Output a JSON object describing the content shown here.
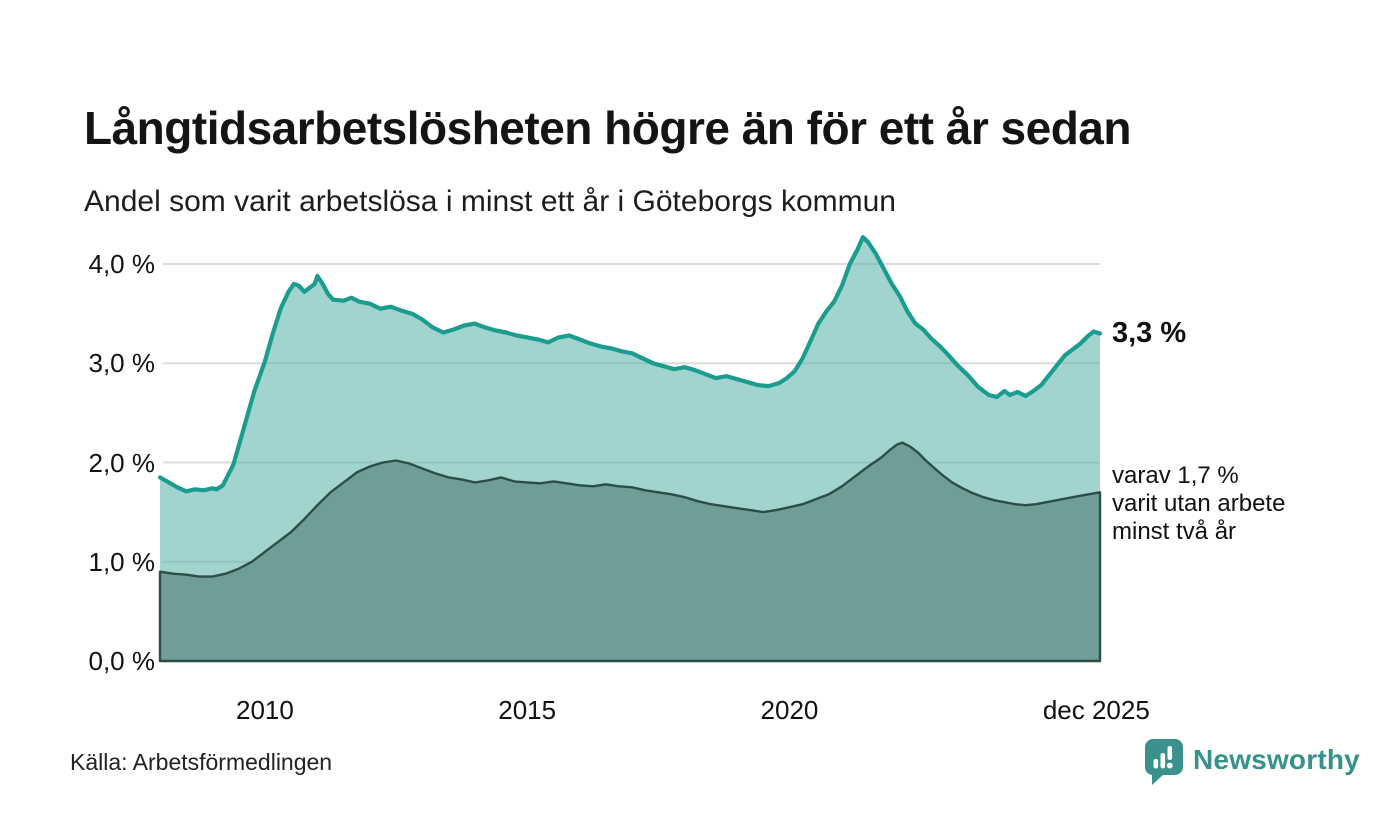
{
  "header": {
    "title": "Långtidsarbetslösheten högre än för ett år sedan",
    "subtitle": "Andel som varit arbetslösa i minst ett år i Göteborgs kommun"
  },
  "chart_data": {
    "type": "area",
    "title": "Långtidsarbetslösheten högre än för ett år sedan",
    "subtitle": "Andel som varit arbetslösa i minst ett år i Göteborgs kommun",
    "xlabel": "",
    "ylabel": "",
    "x_range": [
      2008.0,
      2025.92
    ],
    "ylim": [
      0,
      4.3
    ],
    "grid": true,
    "legend_position": "none",
    "y_ticks": [
      {
        "label": "0,0 %",
        "value": 0
      },
      {
        "label": "1,0 %",
        "value": 1
      },
      {
        "label": "2,0 %",
        "value": 2
      },
      {
        "label": "3,0 %",
        "value": 3
      },
      {
        "label": "4,0 %",
        "value": 4
      }
    ],
    "x_ticks": [
      {
        "label": "2010",
        "year": 2010
      },
      {
        "label": "2015",
        "year": 2015
      },
      {
        "label": "2020",
        "year": 2020
      },
      {
        "label": "dec 2025",
        "year": 2025.85
      }
    ],
    "colors": {
      "gridline": "#dcdcdc",
      "total_line": "#1a9c8e",
      "total_fill": "rgba(89,179,169,0.57)",
      "twoyear_line": "#2b4e49",
      "twoyear_fill": "#6f9e99"
    },
    "series": [
      {
        "name": "Arbetslösa minst ett år",
        "latest_value": 3.3,
        "points": [
          [
            2008.0,
            1.85
          ],
          [
            2008.17,
            1.8
          ],
          [
            2008.33,
            1.75
          ],
          [
            2008.5,
            1.71
          ],
          [
            2008.67,
            1.73
          ],
          [
            2008.83,
            1.72
          ],
          [
            2009.0,
            1.74
          ],
          [
            2009.08,
            1.73
          ],
          [
            2009.2,
            1.77
          ],
          [
            2009.4,
            1.98
          ],
          [
            2009.6,
            2.35
          ],
          [
            2009.8,
            2.72
          ],
          [
            2010.0,
            3.02
          ],
          [
            2010.15,
            3.3
          ],
          [
            2010.3,
            3.55
          ],
          [
            2010.45,
            3.72
          ],
          [
            2010.55,
            3.8
          ],
          [
            2010.65,
            3.78
          ],
          [
            2010.75,
            3.72
          ],
          [
            2010.85,
            3.76
          ],
          [
            2010.95,
            3.8
          ],
          [
            2011.0,
            3.88
          ],
          [
            2011.1,
            3.8
          ],
          [
            2011.2,
            3.7
          ],
          [
            2011.3,
            3.64
          ],
          [
            2011.5,
            3.63
          ],
          [
            2011.65,
            3.66
          ],
          [
            2011.8,
            3.62
          ],
          [
            2012.0,
            3.6
          ],
          [
            2012.2,
            3.55
          ],
          [
            2012.4,
            3.57
          ],
          [
            2012.6,
            3.53
          ],
          [
            2012.8,
            3.5
          ],
          [
            2013.0,
            3.44
          ],
          [
            2013.2,
            3.36
          ],
          [
            2013.4,
            3.31
          ],
          [
            2013.6,
            3.34
          ],
          [
            2013.8,
            3.38
          ],
          [
            2014.0,
            3.4
          ],
          [
            2014.2,
            3.36
          ],
          [
            2014.4,
            3.33
          ],
          [
            2014.6,
            3.31
          ],
          [
            2014.8,
            3.28
          ],
          [
            2015.0,
            3.26
          ],
          [
            2015.2,
            3.24
          ],
          [
            2015.4,
            3.21
          ],
          [
            2015.6,
            3.26
          ],
          [
            2015.8,
            3.28
          ],
          [
            2016.0,
            3.24
          ],
          [
            2016.2,
            3.2
          ],
          [
            2016.4,
            3.17
          ],
          [
            2016.6,
            3.15
          ],
          [
            2016.8,
            3.12
          ],
          [
            2017.0,
            3.1
          ],
          [
            2017.2,
            3.05
          ],
          [
            2017.4,
            3.0
          ],
          [
            2017.6,
            2.97
          ],
          [
            2017.8,
            2.94
          ],
          [
            2018.0,
            2.96
          ],
          [
            2018.2,
            2.93
          ],
          [
            2018.4,
            2.89
          ],
          [
            2018.6,
            2.85
          ],
          [
            2018.8,
            2.87
          ],
          [
            2019.0,
            2.84
          ],
          [
            2019.2,
            2.81
          ],
          [
            2019.4,
            2.78
          ],
          [
            2019.6,
            2.77
          ],
          [
            2019.8,
            2.8
          ],
          [
            2019.95,
            2.85
          ],
          [
            2020.1,
            2.92
          ],
          [
            2020.25,
            3.05
          ],
          [
            2020.4,
            3.22
          ],
          [
            2020.55,
            3.4
          ],
          [
            2020.7,
            3.52
          ],
          [
            2020.85,
            3.62
          ],
          [
            2021.0,
            3.78
          ],
          [
            2021.15,
            4.0
          ],
          [
            2021.3,
            4.15
          ],
          [
            2021.4,
            4.27
          ],
          [
            2021.5,
            4.22
          ],
          [
            2021.65,
            4.1
          ],
          [
            2021.8,
            3.95
          ],
          [
            2021.95,
            3.8
          ],
          [
            2022.1,
            3.68
          ],
          [
            2022.25,
            3.52
          ],
          [
            2022.4,
            3.4
          ],
          [
            2022.55,
            3.34
          ],
          [
            2022.7,
            3.25
          ],
          [
            2022.85,
            3.18
          ],
          [
            2023.0,
            3.1
          ],
          [
            2023.2,
            2.98
          ],
          [
            2023.4,
            2.88
          ],
          [
            2023.6,
            2.76
          ],
          [
            2023.8,
            2.68
          ],
          [
            2023.95,
            2.66
          ],
          [
            2024.1,
            2.72
          ],
          [
            2024.2,
            2.68
          ],
          [
            2024.35,
            2.71
          ],
          [
            2024.5,
            2.67
          ],
          [
            2024.65,
            2.72
          ],
          [
            2024.8,
            2.78
          ],
          [
            2024.95,
            2.88
          ],
          [
            2025.1,
            2.98
          ],
          [
            2025.25,
            3.08
          ],
          [
            2025.4,
            3.14
          ],
          [
            2025.55,
            3.2
          ],
          [
            2025.7,
            3.28
          ],
          [
            2025.8,
            3.32
          ],
          [
            2025.92,
            3.3
          ]
        ]
      },
      {
        "name": "Varav utan arbete minst två år",
        "latest_value": 1.7,
        "points": [
          [
            2008.0,
            0.9
          ],
          [
            2008.25,
            0.88
          ],
          [
            2008.5,
            0.87
          ],
          [
            2008.75,
            0.85
          ],
          [
            2009.0,
            0.85
          ],
          [
            2009.25,
            0.88
          ],
          [
            2009.5,
            0.93
          ],
          [
            2009.75,
            1.0
          ],
          [
            2010.0,
            1.1
          ],
          [
            2010.25,
            1.2
          ],
          [
            2010.5,
            1.3
          ],
          [
            2010.75,
            1.43
          ],
          [
            2011.0,
            1.57
          ],
          [
            2011.25,
            1.7
          ],
          [
            2011.5,
            1.8
          ],
          [
            2011.75,
            1.9
          ],
          [
            2012.0,
            1.96
          ],
          [
            2012.25,
            2.0
          ],
          [
            2012.5,
            2.02
          ],
          [
            2012.75,
            1.99
          ],
          [
            2013.0,
            1.94
          ],
          [
            2013.25,
            1.89
          ],
          [
            2013.5,
            1.85
          ],
          [
            2013.75,
            1.83
          ],
          [
            2014.0,
            1.8
          ],
          [
            2014.25,
            1.82
          ],
          [
            2014.5,
            1.85
          ],
          [
            2014.75,
            1.81
          ],
          [
            2015.0,
            1.8
          ],
          [
            2015.25,
            1.79
          ],
          [
            2015.5,
            1.81
          ],
          [
            2015.75,
            1.79
          ],
          [
            2016.0,
            1.77
          ],
          [
            2016.25,
            1.76
          ],
          [
            2016.5,
            1.78
          ],
          [
            2016.75,
            1.76
          ],
          [
            2017.0,
            1.75
          ],
          [
            2017.25,
            1.72
          ],
          [
            2017.5,
            1.7
          ],
          [
            2017.75,
            1.68
          ],
          [
            2018.0,
            1.65
          ],
          [
            2018.25,
            1.61
          ],
          [
            2018.5,
            1.58
          ],
          [
            2018.75,
            1.56
          ],
          [
            2019.0,
            1.54
          ],
          [
            2019.25,
            1.52
          ],
          [
            2019.5,
            1.5
          ],
          [
            2019.75,
            1.52
          ],
          [
            2020.0,
            1.55
          ],
          [
            2020.25,
            1.58
          ],
          [
            2020.5,
            1.63
          ],
          [
            2020.75,
            1.68
          ],
          [
            2021.0,
            1.76
          ],
          [
            2021.25,
            1.86
          ],
          [
            2021.5,
            1.96
          ],
          [
            2021.75,
            2.05
          ],
          [
            2021.9,
            2.12
          ],
          [
            2022.05,
            2.18
          ],
          [
            2022.15,
            2.2
          ],
          [
            2022.3,
            2.16
          ],
          [
            2022.45,
            2.1
          ],
          [
            2022.6,
            2.02
          ],
          [
            2022.75,
            1.95
          ],
          [
            2022.9,
            1.88
          ],
          [
            2023.1,
            1.8
          ],
          [
            2023.3,
            1.74
          ],
          [
            2023.5,
            1.69
          ],
          [
            2023.7,
            1.65
          ],
          [
            2023.9,
            1.62
          ],
          [
            2024.1,
            1.6
          ],
          [
            2024.3,
            1.58
          ],
          [
            2024.5,
            1.57
          ],
          [
            2024.7,
            1.58
          ],
          [
            2024.9,
            1.6
          ],
          [
            2025.1,
            1.62
          ],
          [
            2025.3,
            1.64
          ],
          [
            2025.5,
            1.66
          ],
          [
            2025.7,
            1.68
          ],
          [
            2025.92,
            1.7
          ]
        ]
      }
    ],
    "annotations": {
      "latest_total": "3,3 %",
      "sub_lines": [
        "varav 1,7 %",
        "varit utan arbete",
        "minst två år"
      ]
    }
  },
  "footer": {
    "source": "Källa: Arbetsförmedlingen",
    "brand": "Newsworthy",
    "brand_color": "#37918b"
  }
}
